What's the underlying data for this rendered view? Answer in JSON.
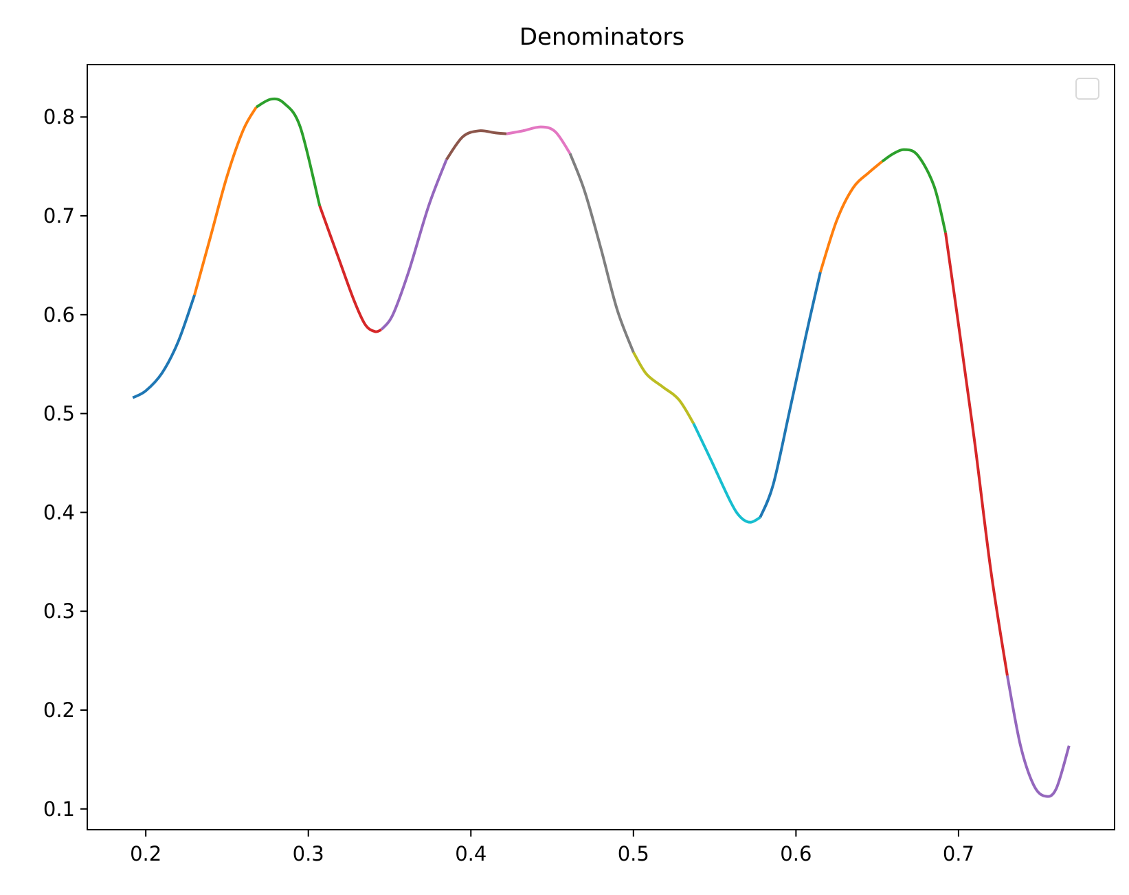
{
  "chart_data": {
    "type": "line",
    "title": "Denominators",
    "xlabel": "",
    "ylabel": "",
    "xlim": [
      0.164,
      0.796
    ],
    "ylim": [
      0.079,
      0.853
    ],
    "x_ticks": [
      "0.2",
      "0.3",
      "0.4",
      "0.5",
      "0.6",
      "0.7"
    ],
    "y_ticks": [
      "0.1",
      "0.2",
      "0.3",
      "0.4",
      "0.5",
      "0.6",
      "0.7",
      "0.8"
    ],
    "grid": false,
    "legend": {
      "position": "upper right",
      "entries": []
    },
    "series": [
      {
        "color": "#1f77b4",
        "points": [
          [
            0.192,
            0.516
          ],
          [
            0.2,
            0.523
          ],
          [
            0.21,
            0.541
          ],
          [
            0.22,
            0.573
          ],
          [
            0.23,
            0.62
          ]
        ]
      },
      {
        "color": "#ff7f0e",
        "points": [
          [
            0.23,
            0.62
          ],
          [
            0.24,
            0.68
          ],
          [
            0.25,
            0.74
          ],
          [
            0.26,
            0.787
          ],
          [
            0.268,
            0.81
          ]
        ]
      },
      {
        "color": "#2ca02c",
        "points": [
          [
            0.268,
            0.81
          ],
          [
            0.277,
            0.818
          ],
          [
            0.285,
            0.814
          ],
          [
            0.295,
            0.79
          ],
          [
            0.307,
            0.71
          ]
        ]
      },
      {
        "color": "#d62728",
        "points": [
          [
            0.307,
            0.71
          ],
          [
            0.318,
            0.66
          ],
          [
            0.328,
            0.615
          ],
          [
            0.335,
            0.59
          ],
          [
            0.341,
            0.583
          ],
          [
            0.345,
            0.585
          ]
        ]
      },
      {
        "color": "#9467bd",
        "points": [
          [
            0.345,
            0.585
          ],
          [
            0.352,
            0.6
          ],
          [
            0.362,
            0.645
          ],
          [
            0.374,
            0.71
          ],
          [
            0.385,
            0.757
          ]
        ]
      },
      {
        "color": "#8c564b",
        "points": [
          [
            0.385,
            0.757
          ],
          [
            0.395,
            0.78
          ],
          [
            0.405,
            0.786
          ],
          [
            0.415,
            0.784
          ],
          [
            0.422,
            0.783
          ]
        ]
      },
      {
        "color": "#e377c2",
        "points": [
          [
            0.422,
            0.783
          ],
          [
            0.432,
            0.786
          ],
          [
            0.443,
            0.79
          ],
          [
            0.452,
            0.785
          ],
          [
            0.461,
            0.763
          ]
        ]
      },
      {
        "color": "#7f7f7f",
        "points": [
          [
            0.461,
            0.763
          ],
          [
            0.47,
            0.725
          ],
          [
            0.48,
            0.667
          ],
          [
            0.49,
            0.605
          ],
          [
            0.5,
            0.562
          ]
        ]
      },
      {
        "color": "#bcbd22",
        "points": [
          [
            0.5,
            0.562
          ],
          [
            0.508,
            0.54
          ],
          [
            0.518,
            0.527
          ],
          [
            0.528,
            0.514
          ],
          [
            0.537,
            0.49
          ]
        ]
      },
      {
        "color": "#17becf",
        "points": [
          [
            0.537,
            0.49
          ],
          [
            0.548,
            0.452
          ],
          [
            0.56,
            0.41
          ],
          [
            0.566,
            0.395
          ],
          [
            0.572,
            0.39
          ],
          [
            0.578,
            0.395
          ]
        ]
      },
      {
        "color": "#1f77b4",
        "points": [
          [
            0.578,
            0.395
          ],
          [
            0.586,
            0.428
          ],
          [
            0.596,
            0.502
          ],
          [
            0.606,
            0.578
          ],
          [
            0.615,
            0.643
          ]
        ]
      },
      {
        "color": "#ff7f0e",
        "points": [
          [
            0.615,
            0.643
          ],
          [
            0.625,
            0.695
          ],
          [
            0.635,
            0.728
          ],
          [
            0.645,
            0.744
          ],
          [
            0.653,
            0.755
          ]
        ]
      },
      {
        "color": "#2ca02c",
        "points": [
          [
            0.653,
            0.755
          ],
          [
            0.66,
            0.763
          ],
          [
            0.667,
            0.767
          ],
          [
            0.675,
            0.761
          ],
          [
            0.685,
            0.73
          ],
          [
            0.692,
            0.683
          ]
        ]
      },
      {
        "color": "#d62728",
        "points": [
          [
            0.692,
            0.683
          ],
          [
            0.7,
            0.59
          ],
          [
            0.71,
            0.47
          ],
          [
            0.72,
            0.34
          ],
          [
            0.73,
            0.235
          ]
        ]
      },
      {
        "color": "#9467bd",
        "points": [
          [
            0.73,
            0.235
          ],
          [
            0.738,
            0.165
          ],
          [
            0.746,
            0.125
          ],
          [
            0.753,
            0.113
          ],
          [
            0.76,
            0.12
          ],
          [
            0.768,
            0.164
          ]
        ]
      }
    ]
  }
}
